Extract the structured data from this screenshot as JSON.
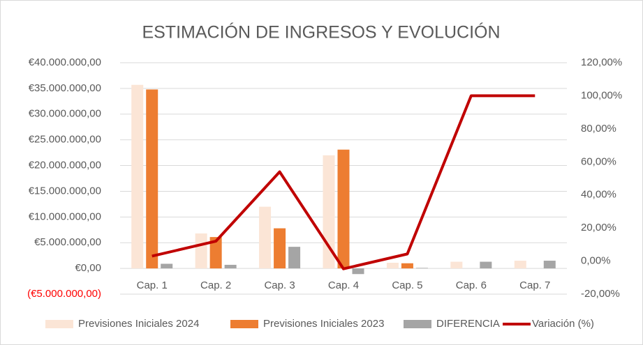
{
  "chart_data": {
    "type": "bar",
    "title": "ESTIMACIÓN DE INGRESOS Y EVOLUCIÓN",
    "categories": [
      "Cap. 1",
      "Cap. 2",
      "Cap. 3",
      "Cap. 4",
      "Cap. 5",
      "Cap. 6",
      "Cap. 7"
    ],
    "series": [
      {
        "name": "Previsiones Iniciales 2024",
        "color": "#fbe5d6",
        "type": "bar",
        "values": [
          35700000,
          6800000,
          12000000,
          22000000,
          1100000,
          1300000,
          1500000
        ]
      },
      {
        "name": "Previsiones Iniciales 2023",
        "color": "#ed7d31",
        "type": "bar",
        "values": [
          34800000,
          6100000,
          7800000,
          23100000,
          1000000,
          0,
          0
        ]
      },
      {
        "name": "DIFERENCIA",
        "color": "#a5a5a5",
        "type": "bar",
        "values": [
          900000,
          700000,
          4200000,
          -1100000,
          100000,
          1300000,
          1500000
        ]
      },
      {
        "name": "Variación (%)",
        "color": "#c00000",
        "type": "line",
        "axis": "y2",
        "values": [
          3,
          12,
          54,
          -4.7,
          4.3,
          100,
          100
        ]
      }
    ],
    "ylim": [
      -5000000,
      40000000
    ],
    "yticks": [
      {
        "value": -5000000,
        "label": "(€5.000.000,00)"
      },
      {
        "value": 0,
        "label": "€0,00"
      },
      {
        "value": 5000000,
        "label": "€5.000.000,00"
      },
      {
        "value": 10000000,
        "label": "€10.000.000,00"
      },
      {
        "value": 15000000,
        "label": "€15.000.000,00"
      },
      {
        "value": 20000000,
        "label": "€20.000.000,00"
      },
      {
        "value": 25000000,
        "label": "€25.000.000,00"
      },
      {
        "value": 30000000,
        "label": "€30.000.000,00"
      },
      {
        "value": 35000000,
        "label": "€35.000.000,00"
      },
      {
        "value": 40000000,
        "label": "€40.000.000,00"
      }
    ],
    "negative_tick_color": "#ff0000",
    "y2lim": [
      -20,
      120
    ],
    "y2ticks": [
      {
        "value": -20,
        "label": "-20,00%"
      },
      {
        "value": 0,
        "label": "0,00%"
      },
      {
        "value": 20,
        "label": "20,00%"
      },
      {
        "value": 40,
        "label": "40,00%"
      },
      {
        "value": 60,
        "label": "60,00%"
      },
      {
        "value": 80,
        "label": "80,00%"
      },
      {
        "value": 100,
        "label": "100,00%"
      },
      {
        "value": 120,
        "label": "120,00%"
      }
    ],
    "grid": true,
    "legend": "bottom"
  }
}
